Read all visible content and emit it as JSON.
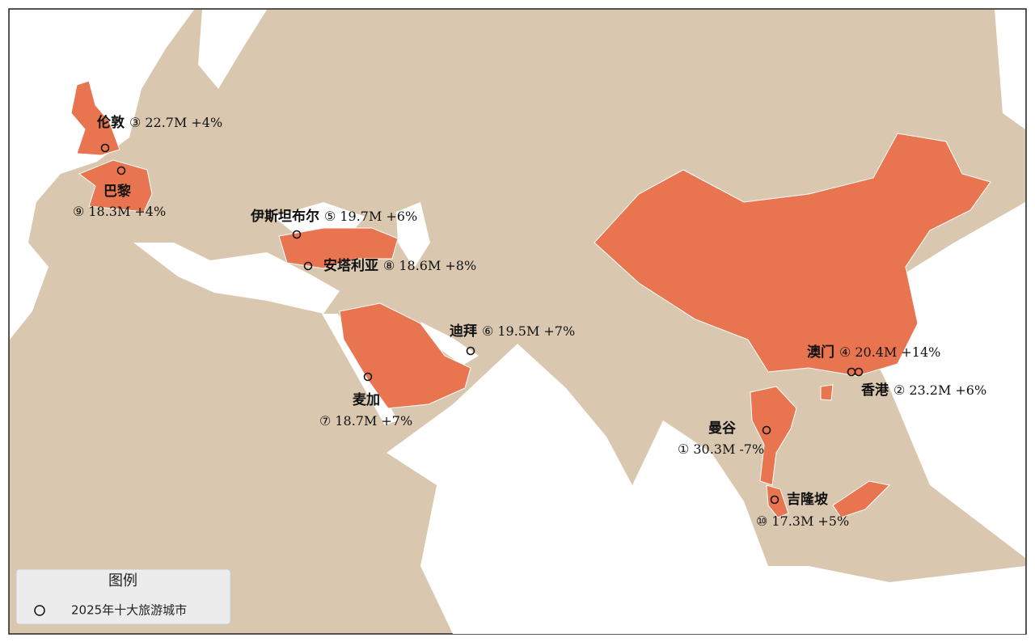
{
  "cities": [
    {
      "name": "伦敦",
      "rank": "③",
      "visitors": "22.7M",
      "change": "+4%"
    },
    {
      "name": "巴黎",
      "rank": "⑨",
      "visitors": "18.3M",
      "change": "+4%"
    },
    {
      "name": "伊斯坦布尔",
      "rank": "⑤",
      "visitors": "19.7M",
      "change": "+6%"
    },
    {
      "name": "安塔利亚",
      "rank": "⑧",
      "visitors": "18.6M",
      "change": "+8%"
    },
    {
      "name": "迪拜",
      "rank": "⑥",
      "visitors": "19.5M",
      "change": "+7%"
    },
    {
      "name": "麦加",
      "rank": "⑦",
      "visitors": "18.7M",
      "change": "+7%"
    },
    {
      "name": "澳门",
      "rank": "④",
      "visitors": "20.4M",
      "change": "+14%"
    },
    {
      "name": "香港",
      "rank": "②",
      "visitors": "23.2M",
      "change": "+6%"
    },
    {
      "name": "曼谷",
      "rank": "①",
      "visitors": "30.3M",
      "change": "-7%"
    },
    {
      "name": "吉隆坡",
      "rank": "⑩",
      "visitors": "17.3M",
      "change": "+5%"
    }
  ],
  "legend": {
    "title": "图例",
    "entry": "2025年十大旅游城市"
  }
}
